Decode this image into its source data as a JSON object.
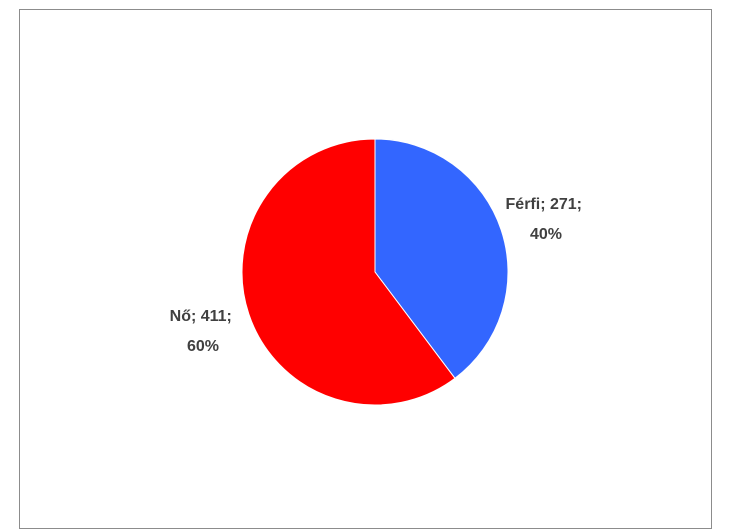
{
  "chart_data": {
    "type": "pie",
    "slices": [
      {
        "label": "Férfi",
        "value": 271,
        "percent": "40%",
        "color": "#3366ff"
      },
      {
        "label": "Nő",
        "value": 411,
        "percent": "60%",
        "color": "#ff0000"
      }
    ],
    "title": "",
    "legend": "none",
    "data_labels": [
      {
        "line1": "Férfi; 271;",
        "line2": "40%"
      },
      {
        "line1": "Nő; 411;",
        "line2": "60%"
      }
    ]
  }
}
